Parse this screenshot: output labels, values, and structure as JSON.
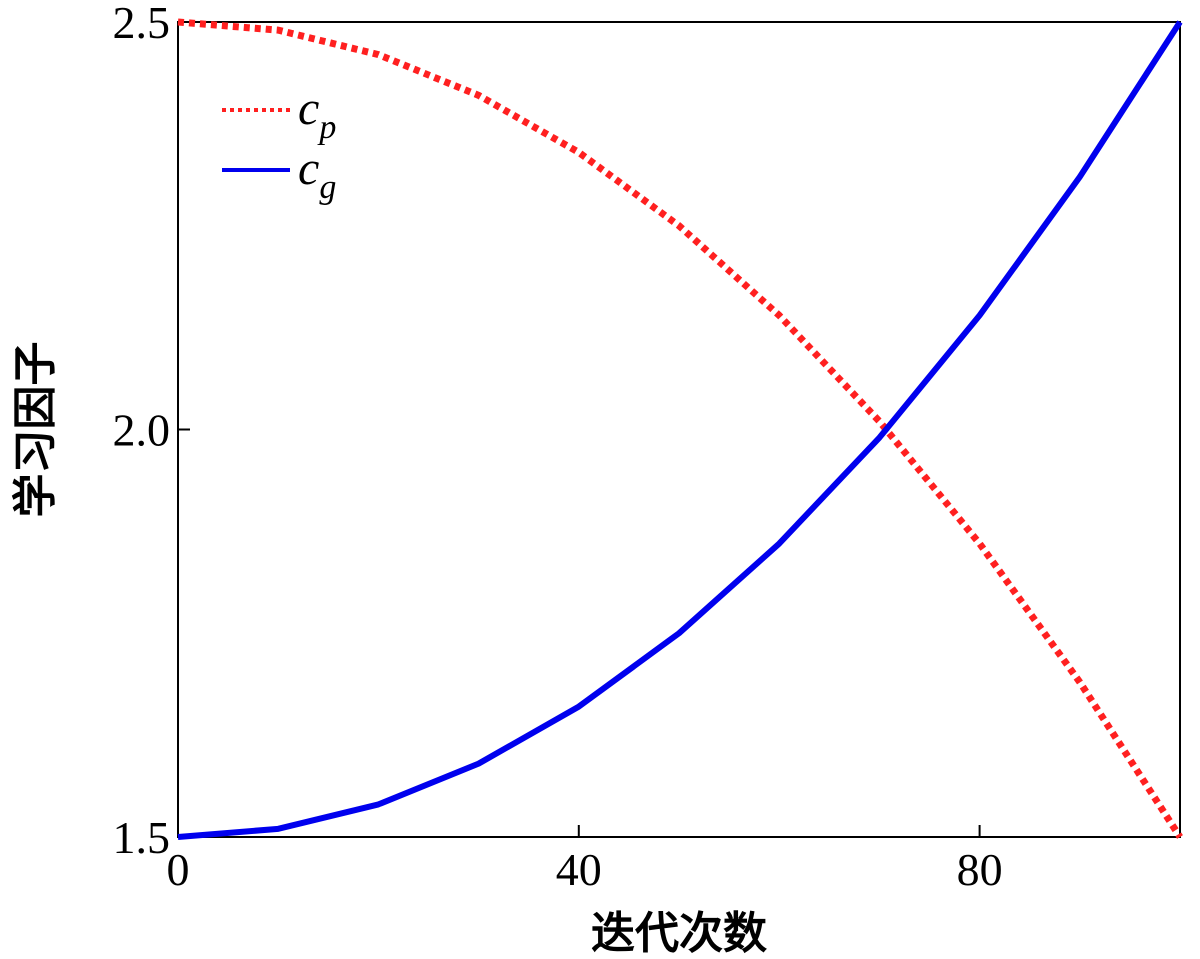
{
  "chart_data": {
    "type": "line",
    "xlabel": "迭代次数",
    "ylabel": "学习因子",
    "xlim": [
      0,
      100
    ],
    "ylim": [
      1.5,
      2.5
    ],
    "x_ticks": [
      0,
      40,
      80
    ],
    "y_ticks": [
      1.5,
      2.0,
      2.5
    ],
    "x_tick_labels": [
      "0",
      "40",
      "80"
    ],
    "y_tick_labels": [
      "1.5",
      "2.0",
      "2.5"
    ],
    "x": [
      0,
      10,
      20,
      30,
      40,
      50,
      60,
      70,
      80,
      90,
      100
    ],
    "series": [
      {
        "name_base": "c",
        "name_sub": "p",
        "color": "#ff2020",
        "style": "dotted",
        "values": [
          2.5,
          2.49,
          2.46,
          2.41,
          2.34,
          2.25,
          2.14,
          2.01,
          1.86,
          1.69,
          1.5
        ]
      },
      {
        "name_base": "c",
        "name_sub": "g",
        "color": "#0000ee",
        "style": "solid",
        "values": [
          1.5,
          1.51,
          1.54,
          1.59,
          1.66,
          1.75,
          1.86,
          1.99,
          2.14,
          2.31,
          2.5
        ]
      }
    ],
    "legend_position": "top-left",
    "grid": false
  }
}
